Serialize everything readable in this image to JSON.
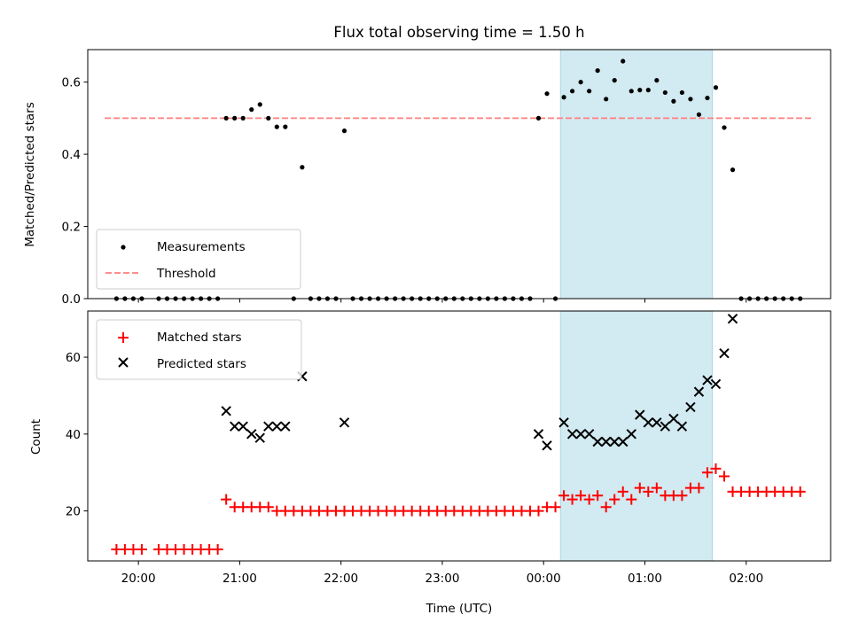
{
  "title": "Flux total observing time = 1.50 h",
  "colors": {
    "threshold": "#ff7f7f",
    "matched": "#ff0000",
    "predicted": "#000000",
    "shade": "#add8e6"
  },
  "chart_data": [
    {
      "type": "scatter",
      "ylabel": "Matched/Predicted stars",
      "xlim": [
        "19:30",
        "02:50"
      ],
      "ylim": [
        0,
        0.69
      ],
      "yticks": [
        "0.0",
        "0.2",
        "0.4",
        "0.6"
      ],
      "shaded_interval": [
        "00:10",
        "01:40"
      ],
      "legend": {
        "position": "lower-left",
        "labels": [
          "Measurements",
          "Threshold"
        ]
      },
      "threshold": {
        "name": "Threshold",
        "value": 0.5,
        "x_range": [
          "19:40",
          "02:40"
        ]
      },
      "series": [
        {
          "name": "Measurements",
          "points": [
            [
              "19:47",
              0
            ],
            [
              "19:52",
              0
            ],
            [
              "19:57",
              0
            ],
            [
              "20:02",
              0
            ],
            [
              "20:12",
              0
            ],
            [
              "20:17",
              0
            ],
            [
              "20:22",
              0
            ],
            [
              "20:27",
              0
            ],
            [
              "20:32",
              0
            ],
            [
              "20:37",
              0
            ],
            [
              "20:42",
              0
            ],
            [
              "20:47",
              0
            ],
            [
              "20:52",
              0.5
            ],
            [
              "20:57",
              0.5
            ],
            [
              "21:02",
              0.5
            ],
            [
              "21:07",
              0.524
            ],
            [
              "21:12",
              0.538
            ],
            [
              "21:17",
              0.5
            ],
            [
              "21:22",
              0.476
            ],
            [
              "21:27",
              0.476
            ],
            [
              "21:32",
              0
            ],
            [
              "21:37",
              0.364
            ],
            [
              "21:42",
              0
            ],
            [
              "21:47",
              0
            ],
            [
              "21:52",
              0
            ],
            [
              "21:57",
              0
            ],
            [
              "22:02",
              0.465
            ],
            [
              "22:07",
              0
            ],
            [
              "22:12",
              0
            ],
            [
              "22:17",
              0
            ],
            [
              "22:22",
              0
            ],
            [
              "22:27",
              0
            ],
            [
              "22:32",
              0
            ],
            [
              "22:37",
              0
            ],
            [
              "22:42",
              0
            ],
            [
              "22:47",
              0
            ],
            [
              "22:52",
              0
            ],
            [
              "22:57",
              0
            ],
            [
              "23:02",
              0
            ],
            [
              "23:07",
              0
            ],
            [
              "23:12",
              0
            ],
            [
              "23:17",
              0
            ],
            [
              "23:22",
              0
            ],
            [
              "23:27",
              0
            ],
            [
              "23:32",
              0
            ],
            [
              "23:37",
              0
            ],
            [
              "23:42",
              0
            ],
            [
              "23:47",
              0
            ],
            [
              "23:52",
              0
            ],
            [
              "23:57",
              0.5
            ],
            [
              "00:02",
              0.568
            ],
            [
              "00:07",
              0
            ],
            [
              "00:12",
              0.558
            ],
            [
              "00:17",
              0.575
            ],
            [
              "00:22",
              0.6
            ],
            [
              "00:27",
              0.575
            ],
            [
              "00:32",
              0.632
            ],
            [
              "00:37",
              0.553
            ],
            [
              "00:42",
              0.605
            ],
            [
              "00:47",
              0.658
            ],
            [
              "00:52",
              0.575
            ],
            [
              "00:57",
              0.578
            ],
            [
              "01:02",
              0.578
            ],
            [
              "01:07",
              0.605
            ],
            [
              "01:12",
              0.571
            ],
            [
              "01:17",
              0.547
            ],
            [
              "01:22",
              0.571
            ],
            [
              "01:27",
              0.553
            ],
            [
              "01:32",
              0.51
            ],
            [
              "01:37",
              0.556
            ],
            [
              "01:42",
              0.585
            ],
            [
              "01:47",
              0.474
            ],
            [
              "01:52",
              0.357
            ],
            [
              "01:57",
              0
            ],
            [
              "02:02",
              0
            ],
            [
              "02:07",
              0
            ],
            [
              "02:12",
              0
            ],
            [
              "02:17",
              0
            ],
            [
              "02:22",
              0
            ],
            [
              "02:27",
              0
            ],
            [
              "02:32",
              0
            ]
          ]
        }
      ]
    },
    {
      "type": "scatter",
      "ylabel": "Count",
      "xlabel": "Time (UTC)",
      "xlim": [
        "19:30",
        "02:50"
      ],
      "ylim": [
        7,
        72
      ],
      "yticks": [
        "20",
        "40",
        "60"
      ],
      "xticks": [
        "20:00",
        "21:00",
        "22:00",
        "23:00",
        "00:00",
        "01:00",
        "02:00"
      ],
      "shaded_interval": [
        "00:10",
        "01:40"
      ],
      "legend": {
        "position": "upper-left",
        "labels": [
          "Matched stars",
          "Predicted stars"
        ]
      },
      "series": [
        {
          "name": "Matched stars",
          "points": [
            [
              "19:47",
              10
            ],
            [
              "19:52",
              10
            ],
            [
              "19:57",
              10
            ],
            [
              "20:02",
              10
            ],
            [
              "20:12",
              10
            ],
            [
              "20:17",
              10
            ],
            [
              "20:22",
              10
            ],
            [
              "20:27",
              10
            ],
            [
              "20:32",
              10
            ],
            [
              "20:37",
              10
            ],
            [
              "20:42",
              10
            ],
            [
              "20:47",
              10
            ],
            [
              "20:52",
              23
            ],
            [
              "20:57",
              21
            ],
            [
              "21:02",
              21
            ],
            [
              "21:07",
              21
            ],
            [
              "21:12",
              21
            ],
            [
              "21:17",
              21
            ],
            [
              "21:22",
              20
            ],
            [
              "21:27",
              20
            ],
            [
              "21:32",
              20
            ],
            [
              "21:37",
              20
            ],
            [
              "21:42",
              20
            ],
            [
              "21:47",
              20
            ],
            [
              "21:52",
              20
            ],
            [
              "21:57",
              20
            ],
            [
              "22:02",
              20
            ],
            [
              "22:07",
              20
            ],
            [
              "22:12",
              20
            ],
            [
              "22:17",
              20
            ],
            [
              "22:22",
              20
            ],
            [
              "22:27",
              20
            ],
            [
              "22:32",
              20
            ],
            [
              "22:37",
              20
            ],
            [
              "22:42",
              20
            ],
            [
              "22:47",
              20
            ],
            [
              "22:52",
              20
            ],
            [
              "22:57",
              20
            ],
            [
              "23:02",
              20
            ],
            [
              "23:07",
              20
            ],
            [
              "23:12",
              20
            ],
            [
              "23:17",
              20
            ],
            [
              "23:22",
              20
            ],
            [
              "23:27",
              20
            ],
            [
              "23:32",
              20
            ],
            [
              "23:37",
              20
            ],
            [
              "23:42",
              20
            ],
            [
              "23:47",
              20
            ],
            [
              "23:52",
              20
            ],
            [
              "23:57",
              20
            ],
            [
              "00:02",
              21
            ],
            [
              "00:07",
              21
            ],
            [
              "00:12",
              24
            ],
            [
              "00:17",
              23
            ],
            [
              "00:22",
              24
            ],
            [
              "00:27",
              23
            ],
            [
              "00:32",
              24
            ],
            [
              "00:37",
              21
            ],
            [
              "00:42",
              23
            ],
            [
              "00:47",
              25
            ],
            [
              "00:52",
              23
            ],
            [
              "00:57",
              26
            ],
            [
              "01:02",
              25
            ],
            [
              "01:07",
              26
            ],
            [
              "01:12",
              24
            ],
            [
              "01:17",
              24
            ],
            [
              "01:22",
              24
            ],
            [
              "01:27",
              26
            ],
            [
              "01:32",
              26
            ],
            [
              "01:37",
              30
            ],
            [
              "01:42",
              31
            ],
            [
              "01:47",
              29
            ],
            [
              "01:52",
              25
            ],
            [
              "01:57",
              25
            ],
            [
              "02:02",
              25
            ],
            [
              "02:07",
              25
            ],
            [
              "02:12",
              25
            ],
            [
              "02:17",
              25
            ],
            [
              "02:22",
              25
            ],
            [
              "02:27",
              25
            ],
            [
              "02:32",
              25
            ]
          ]
        },
        {
          "name": "Predicted stars",
          "points": [
            [
              "20:52",
              46
            ],
            [
              "20:57",
              42
            ],
            [
              "21:02",
              42
            ],
            [
              "21:07",
              40
            ],
            [
              "21:12",
              39
            ],
            [
              "21:17",
              42
            ],
            [
              "21:22",
              42
            ],
            [
              "21:27",
              42
            ],
            [
              "21:37",
              55
            ],
            [
              "22:02",
              43
            ],
            [
              "23:57",
              40
            ],
            [
              "00:02",
              37
            ],
            [
              "00:12",
              43
            ],
            [
              "00:17",
              40
            ],
            [
              "00:22",
              40
            ],
            [
              "00:27",
              40
            ],
            [
              "00:32",
              38
            ],
            [
              "00:37",
              38
            ],
            [
              "00:42",
              38
            ],
            [
              "00:47",
              38
            ],
            [
              "00:52",
              40
            ],
            [
              "00:57",
              45
            ],
            [
              "01:02",
              43
            ],
            [
              "01:07",
              43
            ],
            [
              "01:12",
              42
            ],
            [
              "01:17",
              44
            ],
            [
              "01:22",
              42
            ],
            [
              "01:27",
              47
            ],
            [
              "01:32",
              51
            ],
            [
              "01:37",
              54
            ],
            [
              "01:42",
              53
            ],
            [
              "01:47",
              61
            ],
            [
              "01:52",
              70
            ]
          ]
        }
      ]
    }
  ]
}
